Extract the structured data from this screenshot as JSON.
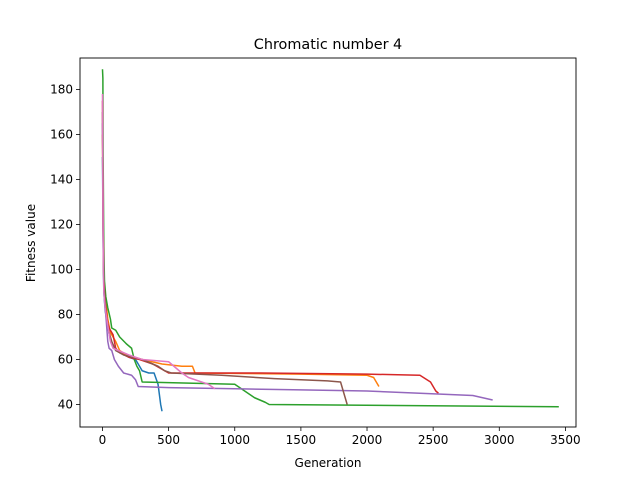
{
  "chart_data": {
    "type": "line",
    "title": "Chromatic number 4",
    "xlabel": "Generation",
    "ylabel": "Fitness value",
    "xlim": [
      -170,
      3580
    ],
    "ylim": [
      30,
      194
    ],
    "xticks": [
      0,
      500,
      1000,
      1500,
      2000,
      2500,
      3000,
      3500
    ],
    "yticks": [
      40,
      60,
      80,
      100,
      120,
      140,
      160,
      180
    ],
    "grid": false,
    "legend": "none",
    "series": [
      {
        "color": "#1f77b4",
        "points": [
          [
            0,
            150
          ],
          [
            5,
            110
          ],
          [
            10,
            90
          ],
          [
            20,
            82
          ],
          [
            40,
            74
          ],
          [
            60,
            69
          ],
          [
            100,
            64
          ],
          [
            200,
            61
          ],
          [
            250,
            60
          ],
          [
            300,
            55
          ],
          [
            350,
            54
          ],
          [
            390,
            54
          ],
          [
            420,
            49
          ],
          [
            440,
            40
          ],
          [
            450,
            37
          ]
        ]
      },
      {
        "color": "#ff7f0e",
        "points": [
          [
            0,
            160
          ],
          [
            5,
            115
          ],
          [
            10,
            95
          ],
          [
            25,
            86
          ],
          [
            40,
            78
          ],
          [
            60,
            72
          ],
          [
            80,
            70
          ],
          [
            100,
            68
          ],
          [
            130,
            64
          ],
          [
            180,
            62
          ],
          [
            300,
            60
          ],
          [
            450,
            58
          ],
          [
            600,
            57
          ],
          [
            680,
            57
          ],
          [
            700,
            54
          ],
          [
            1500,
            53.5
          ],
          [
            2000,
            53
          ],
          [
            2050,
            52
          ],
          [
            2070,
            50
          ],
          [
            2090,
            48
          ]
        ]
      },
      {
        "color": "#2ca02c",
        "points": [
          [
            0,
            189
          ],
          [
            3,
            185
          ],
          [
            5,
            150
          ],
          [
            10,
            110
          ],
          [
            15,
            95
          ],
          [
            25,
            88
          ],
          [
            40,
            83
          ],
          [
            60,
            78
          ],
          [
            70,
            74
          ],
          [
            100,
            73
          ],
          [
            130,
            70
          ],
          [
            180,
            67
          ],
          [
            220,
            65
          ],
          [
            240,
            60
          ],
          [
            260,
            57
          ],
          [
            280,
            55
          ],
          [
            300,
            50
          ],
          [
            1000,
            49
          ],
          [
            1050,
            47
          ],
          [
            1150,
            43
          ],
          [
            1230,
            41
          ],
          [
            1260,
            40
          ],
          [
            3450,
            39
          ]
        ]
      },
      {
        "color": "#d62728",
        "points": [
          [
            0,
            175
          ],
          [
            5,
            120
          ],
          [
            10,
            95
          ],
          [
            20,
            86
          ],
          [
            30,
            80
          ],
          [
            40,
            76
          ],
          [
            50,
            74
          ],
          [
            80,
            71
          ],
          [
            100,
            65
          ],
          [
            130,
            63
          ],
          [
            200,
            61
          ],
          [
            280,
            60
          ],
          [
            380,
            58
          ],
          [
            500,
            54
          ],
          [
            1200,
            54
          ],
          [
            2000,
            53.5
          ],
          [
            2400,
            53
          ],
          [
            2480,
            50
          ],
          [
            2500,
            48
          ],
          [
            2520,
            46
          ],
          [
            2540,
            45
          ]
        ]
      },
      {
        "color": "#9467bd",
        "points": [
          [
            0,
            165
          ],
          [
            5,
            115
          ],
          [
            10,
            92
          ],
          [
            20,
            84
          ],
          [
            30,
            76
          ],
          [
            40,
            68
          ],
          [
            50,
            65
          ],
          [
            70,
            64
          ],
          [
            90,
            60
          ],
          [
            120,
            57
          ],
          [
            160,
            54
          ],
          [
            220,
            53
          ],
          [
            250,
            51
          ],
          [
            270,
            48
          ],
          [
            500,
            47.5
          ],
          [
            1000,
            47
          ],
          [
            1500,
            46.5
          ],
          [
            2000,
            46
          ],
          [
            2400,
            45
          ],
          [
            2800,
            44
          ],
          [
            2950,
            42
          ]
        ]
      },
      {
        "color": "#8c564b",
        "points": [
          [
            0,
            170
          ],
          [
            5,
            118
          ],
          [
            10,
            93
          ],
          [
            20,
            85
          ],
          [
            30,
            79
          ],
          [
            50,
            72
          ],
          [
            70,
            68
          ],
          [
            100,
            64
          ],
          [
            160,
            62
          ],
          [
            300,
            60
          ],
          [
            420,
            57
          ],
          [
            470,
            55
          ],
          [
            520,
            54
          ],
          [
            900,
            53
          ],
          [
            1300,
            51.5
          ],
          [
            1700,
            50.5
          ],
          [
            1800,
            50
          ],
          [
            1820,
            46
          ],
          [
            1840,
            42
          ],
          [
            1850,
            40
          ]
        ]
      },
      {
        "color": "#e377c2",
        "points": [
          [
            0,
            178
          ],
          [
            5,
            112
          ],
          [
            10,
            90
          ],
          [
            20,
            83
          ],
          [
            40,
            75
          ],
          [
            60,
            68
          ],
          [
            80,
            65
          ],
          [
            120,
            64
          ],
          [
            200,
            62
          ],
          [
            300,
            60
          ],
          [
            400,
            59.5
          ],
          [
            500,
            59
          ],
          [
            520,
            58
          ],
          [
            600,
            54
          ],
          [
            650,
            52
          ],
          [
            700,
            51
          ],
          [
            800,
            49
          ],
          [
            850,
            47
          ]
        ]
      }
    ]
  }
}
